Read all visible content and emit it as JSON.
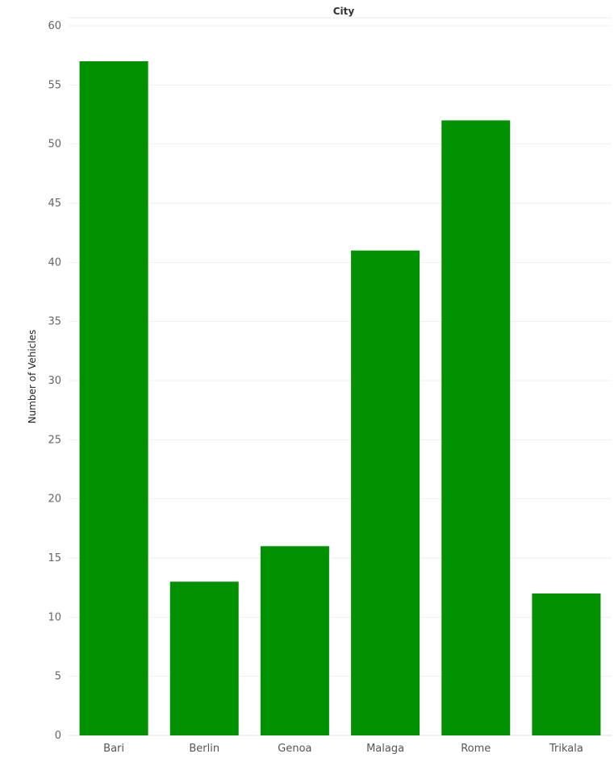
{
  "chart_data": {
    "type": "bar",
    "title": "City",
    "xlabel": "",
    "ylabel": "Number of Vehicles",
    "categories": [
      "Bari",
      "Berlin",
      "Genoa",
      "Malaga",
      "Rome",
      "Trikala"
    ],
    "values": [
      57,
      13,
      16,
      41,
      52,
      12
    ],
    "ylim": [
      0,
      60
    ],
    "yticks": [
      0,
      5,
      10,
      15,
      20,
      25,
      30,
      35,
      40,
      45,
      50,
      55,
      60
    ],
    "grid": true,
    "legend": "none",
    "bar_color": "#009000"
  }
}
